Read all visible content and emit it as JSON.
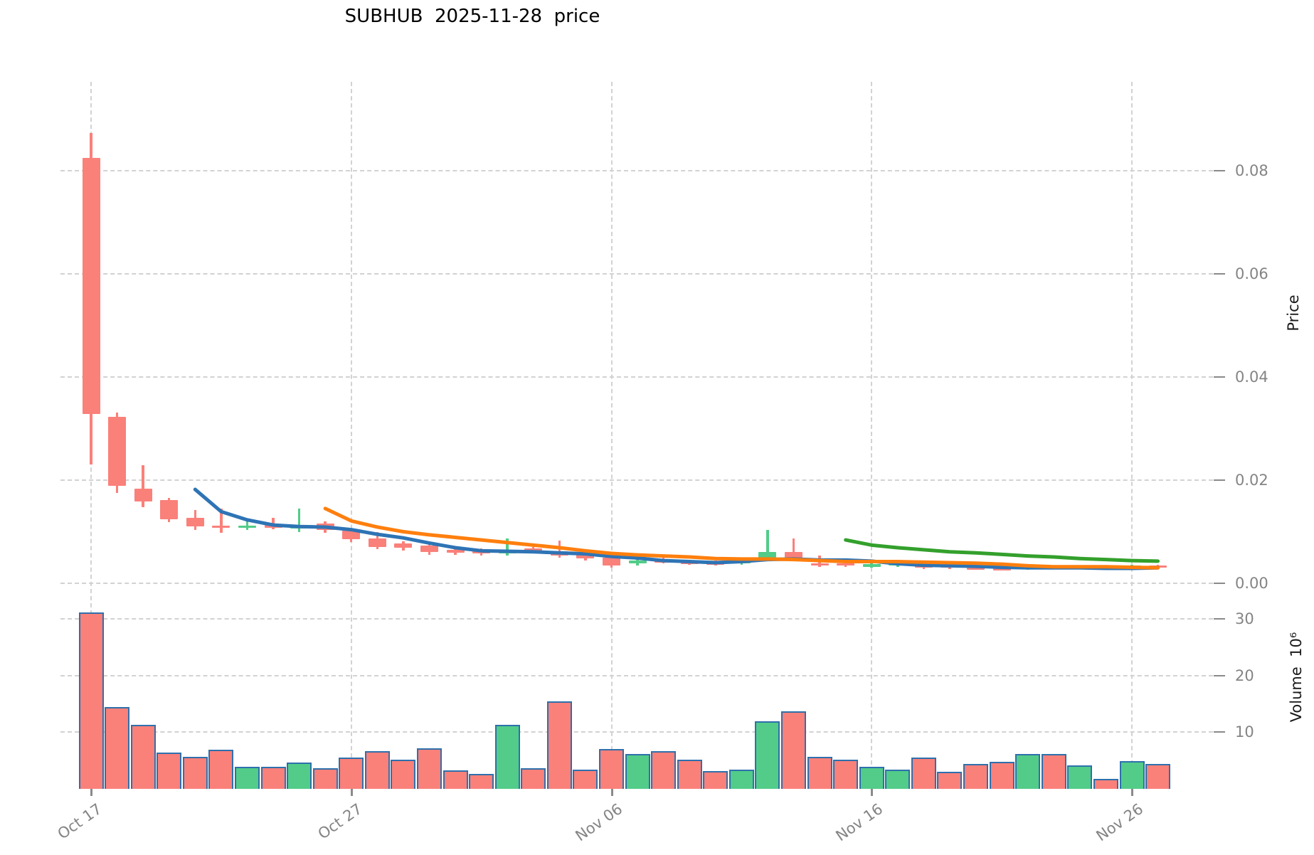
{
  "title": "SUBHUB  2025-11-28  price",
  "axis": {
    "ylabel_price": "Price",
    "ylabel_volume": "Volume  10⁶",
    "price_ticks": [
      "0.00",
      "0.02",
      "0.04",
      "0.06",
      "0.08"
    ],
    "volume_ticks": [
      "10",
      "20",
      "30"
    ],
    "x_ticks": [
      "Oct 17",
      "Oct 27",
      "Nov 06",
      "Nov 16",
      "Nov 26"
    ]
  },
  "colors": {
    "up": "#52cc88",
    "down": "#fa807a",
    "volume_edge": "#2e70ac",
    "ma5": "#2e74b5",
    "ma10": "#ff7f0e",
    "ma30": "#33a02c",
    "grid": "#d2d2d2",
    "tick_label": "#848484",
    "tick_mark": "#8a8a8a"
  },
  "chart_data": {
    "type": "candlestick",
    "title": "SUBHUB  2025-11-28  price",
    "xlabel": "",
    "ylabel": "Price",
    "ylabel2": "Volume 10^6",
    "price_axis_ticks": [
      0.0,
      0.02,
      0.04,
      0.06,
      0.08
    ],
    "volume_axis_ticks_millions": [
      10,
      20,
      30
    ],
    "grid": true,
    "dates": [
      "Oct 17",
      "Oct 18",
      "Oct 19",
      "Oct 20",
      "Oct 21",
      "Oct 22",
      "Oct 23",
      "Oct 24",
      "Oct 25",
      "Oct 26",
      "Oct 27",
      "Oct 28",
      "Oct 29",
      "Oct 30",
      "Oct 31",
      "Nov 01",
      "Nov 02",
      "Nov 03",
      "Nov 04",
      "Nov 05",
      "Nov 06",
      "Nov 07",
      "Nov 08",
      "Nov 09",
      "Nov 10",
      "Nov 11",
      "Nov 12",
      "Nov 13",
      "Nov 14",
      "Nov 15",
      "Nov 16",
      "Nov 17",
      "Nov 18",
      "Nov 19",
      "Nov 20",
      "Nov 21",
      "Nov 22",
      "Nov 23",
      "Nov 24",
      "Nov 25",
      "Nov 26",
      "Nov 27"
    ],
    "ohlc": [
      [
        0.0825,
        0.0873,
        0.023,
        0.0328
      ],
      [
        0.0323,
        0.0331,
        0.0175,
        0.0189
      ],
      [
        0.0184,
        0.0229,
        0.0148,
        0.0159
      ],
      [
        0.0161,
        0.0166,
        0.0119,
        0.0124
      ],
      [
        0.0127,
        0.0142,
        0.0103,
        0.011
      ],
      [
        0.0112,
        0.0145,
        0.0098,
        0.0111
      ],
      [
        0.0108,
        0.0125,
        0.0103,
        0.0112
      ],
      [
        0.0113,
        0.0127,
        0.0105,
        0.0108
      ],
      [
        0.0108,
        0.0145,
        0.01,
        0.011
      ],
      [
        0.0116,
        0.012,
        0.0098,
        0.0103
      ],
      [
        0.0102,
        0.0106,
        0.008,
        0.0085
      ],
      [
        0.0087,
        0.0099,
        0.0066,
        0.0071
      ],
      [
        0.0077,
        0.0082,
        0.0064,
        0.0069
      ],
      [
        0.0073,
        0.0077,
        0.0055,
        0.006
      ],
      [
        0.0065,
        0.0072,
        0.0055,
        0.0059
      ],
      [
        0.0063,
        0.0068,
        0.0054,
        0.0058
      ],
      [
        0.0058,
        0.0087,
        0.0054,
        0.0063
      ],
      [
        0.0067,
        0.007,
        0.0058,
        0.0063
      ],
      [
        0.0062,
        0.0083,
        0.005,
        0.0054
      ],
      [
        0.0056,
        0.006,
        0.0044,
        0.0048
      ],
      [
        0.0049,
        0.0052,
        0.003,
        0.0034
      ],
      [
        0.0038,
        0.0048,
        0.0035,
        0.0044
      ],
      [
        0.0044,
        0.005,
        0.0038,
        0.0042
      ],
      [
        0.0042,
        0.0046,
        0.0036,
        0.004
      ],
      [
        0.004,
        0.0044,
        0.0034,
        0.0038
      ],
      [
        0.0038,
        0.0048,
        0.0036,
        0.0047
      ],
      [
        0.0047,
        0.0104,
        0.0044,
        0.0061
      ],
      [
        0.0061,
        0.0087,
        0.0044,
        0.0047
      ],
      [
        0.0039,
        0.0054,
        0.0032,
        0.0034
      ],
      [
        0.0039,
        0.0042,
        0.0032,
        0.0034
      ],
      [
        0.0032,
        0.004,
        0.003,
        0.0037
      ],
      [
        0.0035,
        0.004,
        0.0032,
        0.0038
      ],
      [
        0.0036,
        0.004,
        0.0028,
        0.003
      ],
      [
        0.0036,
        0.0038,
        0.0028,
        0.0031
      ],
      [
        0.0031,
        0.0036,
        0.0027,
        0.0029
      ],
      [
        0.0029,
        0.0034,
        0.0025,
        0.0027
      ],
      [
        0.0027,
        0.0036,
        0.0026,
        0.0033
      ],
      [
        0.0033,
        0.0035,
        0.0027,
        0.0029
      ],
      [
        0.0029,
        0.0034,
        0.0027,
        0.0032
      ],
      [
        0.0032,
        0.0033,
        0.0027,
        0.0029
      ],
      [
        0.0029,
        0.0036,
        0.0028,
        0.0034
      ],
      [
        0.0034,
        0.0036,
        0.0028,
        0.003
      ]
    ],
    "volume_millions": [
      31.1,
      14.4,
      11.3,
      6.4,
      5.6,
      6.9,
      3.9,
      3.9,
      4.7,
      3.7,
      5.5,
      6.6,
      5.2,
      7.1,
      3.3,
      2.7,
      11.3,
      3.7,
      15.4,
      3.4,
      7.0,
      6.1,
      6.6,
      5.1,
      3.2,
      3.4,
      11.9,
      13.7,
      5.6,
      5.1,
      3.9,
      3.4,
      5.5,
      3.0,
      4.4,
      4.8,
      6.2,
      6.1,
      4.1,
      1.8,
      4.9,
      4.4
    ],
    "series": [
      {
        "name": "MA5",
        "color": "#2e74b5",
        "start_index": 4,
        "values": [
          0.0182,
          0.0139,
          0.0123,
          0.0113,
          0.011,
          0.0109,
          0.0104,
          0.0095,
          0.0088,
          0.0078,
          0.0069,
          0.0063,
          0.0062,
          0.0061,
          0.0059,
          0.0057,
          0.0052,
          0.0049,
          0.0044,
          0.0042,
          0.004,
          0.0042,
          0.0046,
          0.0047,
          0.0045,
          0.0045,
          0.0043,
          0.0038,
          0.0035,
          0.0034,
          0.0033,
          0.0031,
          0.003,
          0.003,
          0.003,
          0.0029,
          0.0029,
          0.003
        ]
      },
      {
        "name": "MA10",
        "color": "#ff7f0e",
        "start_index": 9,
        "values": [
          0.0145,
          0.0121,
          0.0109,
          0.01,
          0.0094,
          0.0089,
          0.0084,
          0.0079,
          0.0074,
          0.0069,
          0.0063,
          0.0058,
          0.0055,
          0.0053,
          0.0051,
          0.0048,
          0.0047,
          0.0047,
          0.0046,
          0.0044,
          0.0042,
          0.0042,
          0.0042,
          0.0041,
          0.004,
          0.0039,
          0.0037,
          0.0034,
          0.0032,
          0.0032,
          0.0032,
          0.0031,
          0.003
        ]
      },
      {
        "name": "MA30",
        "color": "#33a02c",
        "start_index": 29,
        "values": [
          0.0084,
          0.0074,
          0.0069,
          0.0065,
          0.0061,
          0.0059,
          0.0056,
          0.0053,
          0.0051,
          0.0048,
          0.0046,
          0.0044,
          0.0043
        ]
      }
    ]
  }
}
